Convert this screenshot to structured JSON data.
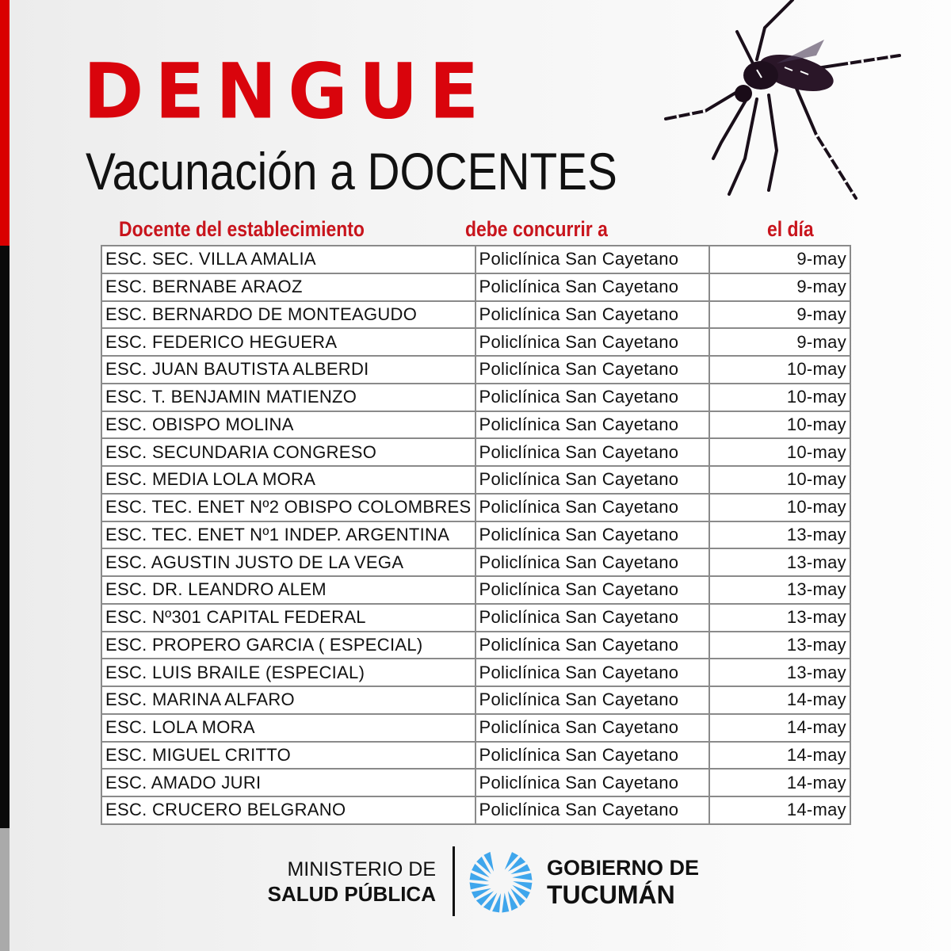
{
  "title": "DENGUE",
  "subtitle": "Vacunación a DOCENTES",
  "headers": {
    "school": "Docente del establecimiento",
    "place": "debe concurrir a",
    "date": "el día"
  },
  "rows": [
    [
      "ESC. SEC. VILLA AMALIA",
      "Policlínica San Cayetano",
      "9-may"
    ],
    [
      "ESC. BERNABE ARAOZ",
      "Policlínica San Cayetano",
      "9-may"
    ],
    [
      "ESC. BERNARDO DE MONTEAGUDO",
      "Policlínica San Cayetano",
      "9-may"
    ],
    [
      "ESC. FEDERICO HEGUERA",
      "Policlínica San Cayetano",
      "9-may"
    ],
    [
      "ESC. JUAN BAUTISTA ALBERDI",
      "Policlínica San Cayetano",
      "10-may"
    ],
    [
      "ESC. T. BENJAMIN MATIENZO",
      "Policlínica San Cayetano",
      "10-may"
    ],
    [
      "ESC. OBISPO MOLINA",
      "Policlínica San Cayetano",
      "10-may"
    ],
    [
      "ESC. SECUNDARIA CONGRESO",
      "Policlínica San Cayetano",
      "10-may"
    ],
    [
      "ESC. MEDIA LOLA MORA",
      "Policlínica San Cayetano",
      "10-may"
    ],
    [
      "ESC. TEC. ENET Nº2 OBISPO COLOMBRES",
      "Policlínica San Cayetano",
      "10-may"
    ],
    [
      "ESC. TEC. ENET Nº1 INDEP. ARGENTINA",
      "Policlínica San Cayetano",
      "13-may"
    ],
    [
      "ESC. AGUSTIN JUSTO DE LA VEGA",
      "Policlínica San Cayetano",
      "13-may"
    ],
    [
      "ESC. DR. LEANDRO ALEM",
      "Policlínica San Cayetano",
      "13-may"
    ],
    [
      "ESC. Nº301 CAPITAL FEDERAL",
      "Policlínica San Cayetano",
      "13-may"
    ],
    [
      "ESC. PROPERO GARCIA ( ESPECIAL)",
      "Policlínica San Cayetano",
      "13-may"
    ],
    [
      "ESC. LUIS BRAILE (ESPECIAL)",
      "Policlínica San Cayetano",
      "13-may"
    ],
    [
      "ESC. MARINA ALFARO",
      "Policlínica San Cayetano",
      "14-may"
    ],
    [
      "ESC. LOLA MORA",
      "Policlínica San Cayetano",
      "14-may"
    ],
    [
      "ESC. MIGUEL CRITTO",
      "Policlínica San Cayetano",
      "14-may"
    ],
    [
      "ESC. AMADO JURI",
      "Policlínica San Cayetano",
      "14-may"
    ],
    [
      "ESC. CRUCERO BELGRANO",
      "Policlínica San Cayetano",
      "14-may"
    ]
  ],
  "footer": {
    "ministry_line1": "MINISTERIO DE",
    "ministry_line2": "SALUD PÚBLICA",
    "gov_line1": "GOBIERNO DE",
    "gov_line2": "TUCUMÁN"
  },
  "colors": {
    "accent_red": "#d9040c",
    "logo_blue": "#3fa6ec"
  },
  "icons": [
    "mosquito-illustration",
    "tucuman-logo-icon"
  ]
}
